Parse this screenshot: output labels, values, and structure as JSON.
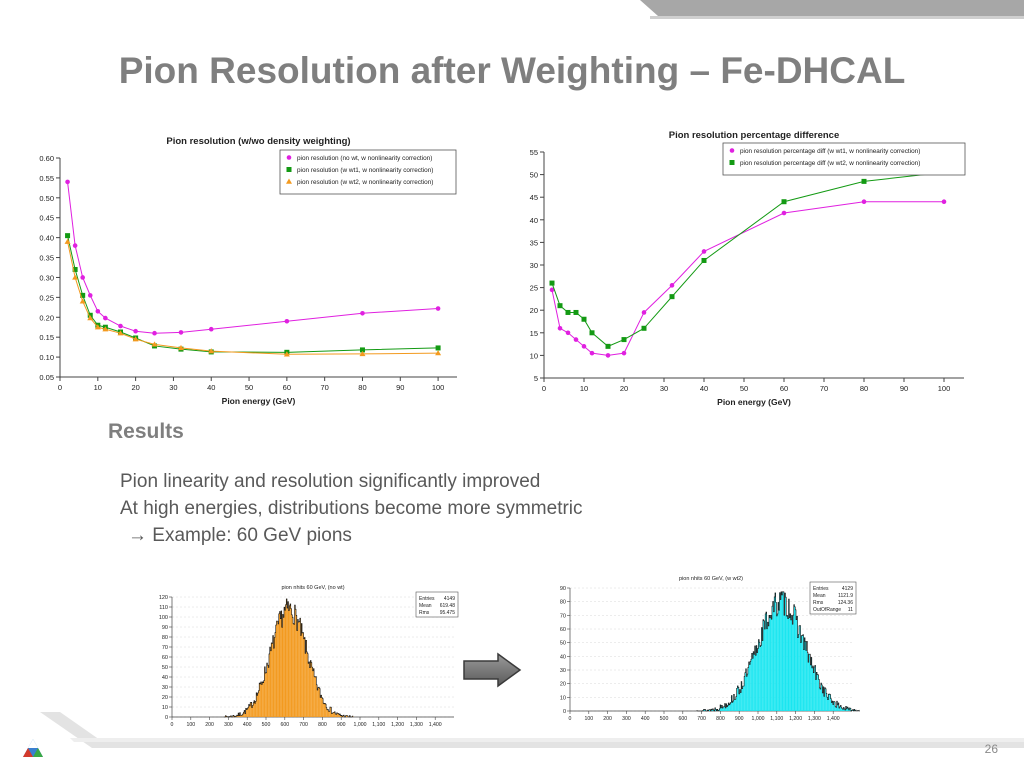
{
  "slide": {
    "title": "Pion Resolution after Weighting – Fe-DHCAL",
    "results_heading": "Results",
    "bullets": [
      "Pion linearity and resolution significantly improved",
      "At high energies, distributions become more symmetric",
      "→ Example: 60 GeV pions"
    ],
    "page_number": "26"
  },
  "colors": {
    "magenta": "#e020e0",
    "green": "#139a13",
    "orange": "#f39a1f",
    "cyan": "#19e6f0",
    "title_gray": "#7f7f7f"
  },
  "chart_data": [
    {
      "type": "line",
      "title": "Pion resolution (w/wo density weighting)",
      "xlabel": "Pion energy (GeV)",
      "ylabel": "",
      "xlim": [
        0,
        105
      ],
      "ylim": [
        0.05,
        0.6
      ],
      "xticks": [
        0,
        10,
        20,
        30,
        40,
        50,
        60,
        70,
        80,
        90,
        100
      ],
      "yticks": [
        0.05,
        0.1,
        0.15,
        0.2,
        0.25,
        0.3,
        0.35,
        0.4,
        0.45,
        0.5,
        0.55,
        0.6
      ],
      "ytick_labels": [
        "0.05",
        "0.10",
        "0.15",
        "0.20",
        "0.25",
        "0.30",
        "0.35",
        "0.40",
        "0.45",
        "0.50",
        "0.55",
        "0.60"
      ],
      "legend_position": "top-right",
      "series": [
        {
          "name": "pion resolution (no wt, w nonlinearity correction)",
          "color": "#e020e0",
          "marker": "circle",
          "x": [
            2,
            4,
            6,
            8,
            10,
            12,
            16,
            20,
            25,
            32,
            40,
            60,
            80,
            100
          ],
          "y": [
            0.54,
            0.38,
            0.3,
            0.255,
            0.215,
            0.198,
            0.178,
            0.165,
            0.16,
            0.162,
            0.17,
            0.19,
            0.21,
            0.222
          ]
        },
        {
          "name": "pion resolution (w wt1, w nonlinearity correction)",
          "color": "#139a13",
          "marker": "square",
          "x": [
            2,
            4,
            6,
            8,
            10,
            12,
            16,
            20,
            25,
            32,
            40,
            60,
            80,
            100
          ],
          "y": [
            0.405,
            0.32,
            0.255,
            0.205,
            0.18,
            0.175,
            0.163,
            0.148,
            0.128,
            0.12,
            0.113,
            0.112,
            0.118,
            0.123
          ]
        },
        {
          "name": "pion resolution (w wt2, w nonlinearity correction)",
          "color": "#f39a1f",
          "marker": "triangle",
          "x": [
            2,
            4,
            6,
            8,
            10,
            12,
            16,
            20,
            25,
            32,
            40,
            60,
            80,
            100
          ],
          "y": [
            0.39,
            0.3,
            0.24,
            0.198,
            0.175,
            0.17,
            0.16,
            0.145,
            0.132,
            0.123,
            0.115,
            0.107,
            0.108,
            0.11
          ]
        }
      ]
    },
    {
      "type": "line",
      "title": "Pion resolution percentage difference",
      "xlabel": "Pion energy (GeV)",
      "ylabel": "",
      "xlim": [
        0,
        105
      ],
      "ylim": [
        5,
        55
      ],
      "xticks": [
        0,
        10,
        20,
        30,
        40,
        50,
        60,
        70,
        80,
        90,
        100
      ],
      "yticks": [
        5,
        10,
        15,
        20,
        25,
        30,
        35,
        40,
        45,
        50,
        55
      ],
      "ytick_labels": [
        "5",
        "10",
        "15",
        "20",
        "25",
        "30",
        "35",
        "40",
        "45",
        "50",
        "55"
      ],
      "legend_position": "top-right",
      "series": [
        {
          "name": "pion resolution percentage diff (w wt1, w nonlinearity correction)",
          "color": "#e020e0",
          "marker": "circle",
          "x": [
            2,
            4,
            6,
            8,
            10,
            12,
            16,
            20,
            25,
            32,
            40,
            60,
            80,
            100
          ],
          "y": [
            24.5,
            16,
            15,
            13.5,
            12,
            10.5,
            10,
            10.5,
            19.5,
            25.5,
            33,
            41.5,
            44,
            44
          ]
        },
        {
          "name": "pion resolution percentage diff (w wt2, w nonlinearity correction)",
          "color": "#139a13",
          "marker": "square",
          "x": [
            2,
            4,
            6,
            8,
            10,
            12,
            16,
            20,
            25,
            32,
            40,
            60,
            80,
            100
          ],
          "y": [
            26,
            21,
            19.5,
            19.5,
            18,
            15,
            12,
            13.5,
            16,
            23,
            31,
            44,
            48.5,
            50.5
          ]
        }
      ]
    },
    {
      "type": "bar",
      "title": "pion nhits 60 GeV, (no wt)",
      "xlabel": "",
      "ylabel": "",
      "xlim": [
        0,
        1500
      ],
      "ylim": [
        0,
        120
      ],
      "xticks": [
        0,
        100,
        200,
        300,
        400,
        500,
        600,
        700,
        800,
        900,
        1000,
        1100,
        1200,
        1300,
        1400
      ],
      "xtick_labels": [
        "0",
        "100",
        "200",
        "300",
        "400",
        "500",
        "600",
        "700",
        "800",
        "900",
        "1,000",
        "1,100",
        "1,200",
        "1,300",
        "1,400"
      ],
      "yticks": [
        0,
        10,
        20,
        30,
        40,
        50,
        60,
        70,
        80,
        90,
        100,
        110,
        120
      ],
      "color": "#f39a1f",
      "stats": [
        [
          "Entries",
          "4149"
        ],
        [
          "Mean",
          "619.48"
        ],
        [
          "Rms",
          "95.475"
        ]
      ],
      "distribution": {
        "mean": 619.48,
        "rms": 95.475,
        "peak": 108,
        "seed": 7,
        "bin_width": 4
      }
    },
    {
      "type": "bar",
      "title": "pion nhits 60 GeV, (w wt2)",
      "xlabel": "",
      "ylabel": "",
      "xlim": [
        0,
        1500
      ],
      "ylim": [
        0,
        90
      ],
      "xticks": [
        0,
        100,
        200,
        300,
        400,
        500,
        600,
        700,
        800,
        900,
        1000,
        1100,
        1200,
        1300,
        1400
      ],
      "xtick_labels": [
        "0",
        "100",
        "200",
        "300",
        "400",
        "500",
        "600",
        "700",
        "800",
        "900",
        "1,000",
        "1,100",
        "1,200",
        "1,300",
        "1,400"
      ],
      "yticks": [
        0,
        10,
        20,
        30,
        40,
        50,
        60,
        70,
        80,
        90
      ],
      "color": "#19e6f0",
      "stats": [
        [
          "Entries",
          "4129"
        ],
        [
          "Mean",
          "1121.9"
        ],
        [
          "Rms",
          "124.36"
        ],
        [
          "OutOfRange",
          "11"
        ]
      ],
      "distribution": {
        "mean": 1121.9,
        "rms": 124.36,
        "peak": 80,
        "seed": 13,
        "bin_width": 4
      }
    }
  ]
}
